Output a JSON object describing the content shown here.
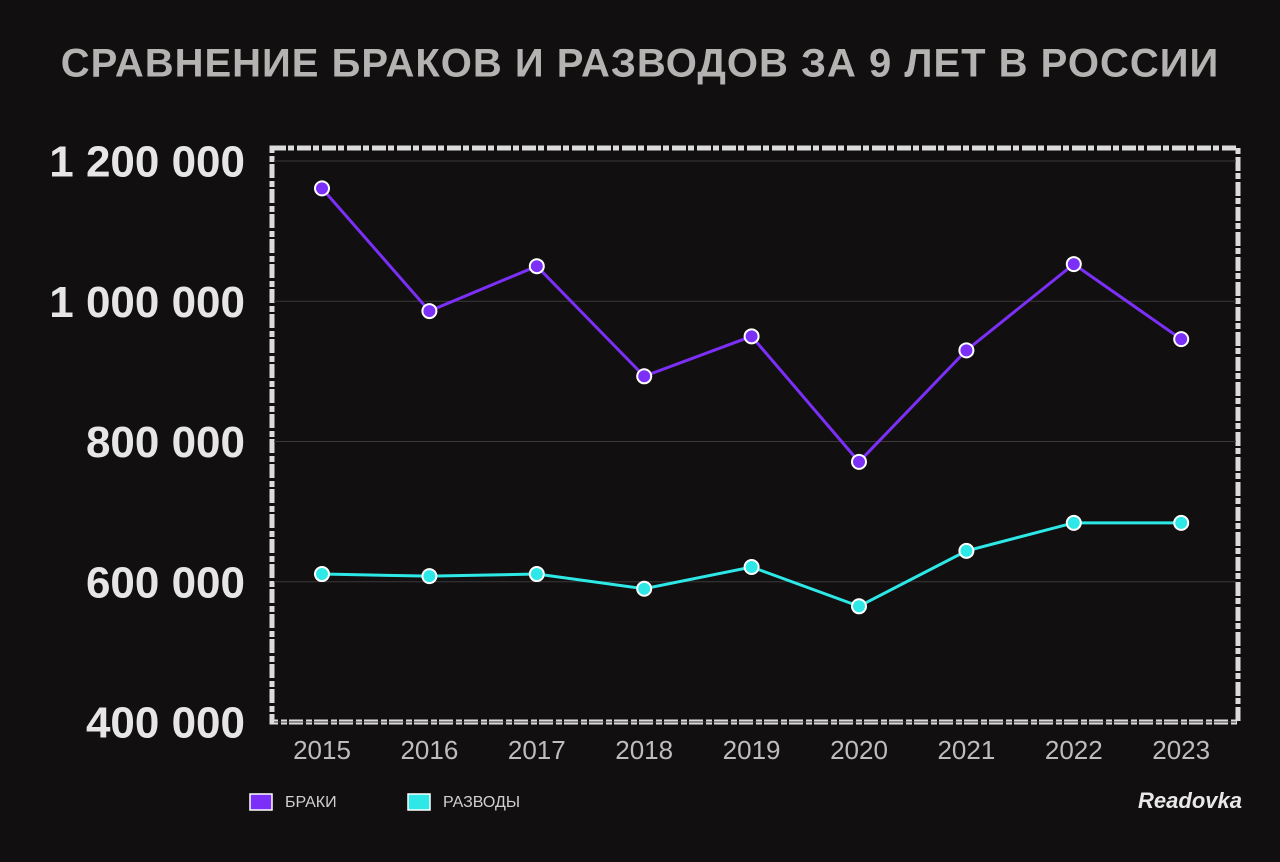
{
  "chart_data": {
    "type": "line",
    "title": "СРАВНЕНИЕ БРАКОВ И РАЗВОДОВ ЗА 9 ЛЕТ В РОССИИ",
    "categories": [
      "2015",
      "2016",
      "2017",
      "2018",
      "2019",
      "2020",
      "2021",
      "2022",
      "2023"
    ],
    "series": [
      {
        "name": "БРАКИ",
        "color": "#7b2ff7",
        "values": [
          1161000,
          986000,
          1050000,
          893000,
          950000,
          771000,
          930000,
          1053000,
          946000
        ]
      },
      {
        "name": "РАЗВОДЫ",
        "color": "#2ee8e8",
        "values": [
          611000,
          608000,
          611000,
          590000,
          621000,
          565000,
          644000,
          684000,
          684000
        ]
      }
    ],
    "ylim": [
      400000,
      1200000
    ],
    "yticks": [
      {
        "value": 400000,
        "label": "400 000"
      },
      {
        "value": 600000,
        "label": "600 000"
      },
      {
        "value": 800000,
        "label": "800 000"
      },
      {
        "value": 1000000,
        "label": "1 000 000"
      },
      {
        "value": 1200000,
        "label": "1 200 000"
      }
    ],
    "grid": true,
    "legend": "bottom-left",
    "watermark": "Readovka"
  }
}
